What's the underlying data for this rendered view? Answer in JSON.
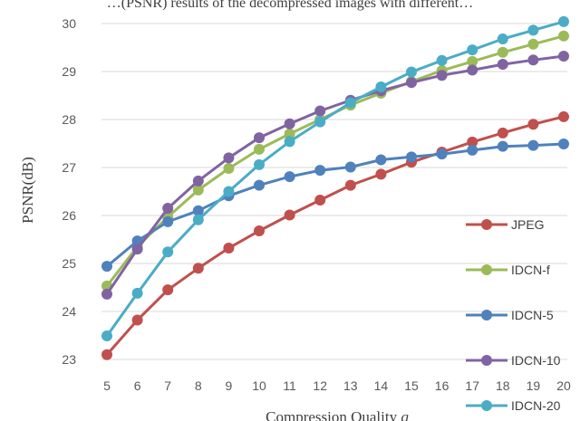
{
  "caption_top": "…(PSNR) results of the decompressed images with different…",
  "chart_data": {
    "type": "line",
    "title": "",
    "xlabel": "Compression Quality q",
    "ylabel": "PSNR(dB)",
    "x": [
      5,
      6,
      7,
      8,
      9,
      10,
      11,
      12,
      13,
      14,
      15,
      16,
      17,
      18,
      19,
      20
    ],
    "ylim": [
      23,
      30
    ],
    "yticks": [
      23,
      24,
      25,
      26,
      27,
      28,
      29,
      30
    ],
    "grid": true,
    "legend_position": "right",
    "series": [
      {
        "name": "JPEG",
        "color": "#c0504d",
        "values": [
          23.1,
          23.82,
          24.45,
          24.9,
          25.32,
          25.68,
          26.01,
          26.32,
          26.63,
          26.86,
          27.11,
          27.32,
          27.53,
          27.72,
          27.9,
          28.06
        ]
      },
      {
        "name": "IDCN-f",
        "color": "#9bbb59",
        "values": [
          24.53,
          25.35,
          25.97,
          26.53,
          26.98,
          27.38,
          27.7,
          28.0,
          28.3,
          28.55,
          28.79,
          29.02,
          29.21,
          29.4,
          29.57,
          29.74
        ]
      },
      {
        "name": "IDCN-5",
        "color": "#4f81bd",
        "values": [
          24.94,
          25.47,
          25.87,
          26.1,
          26.41,
          26.63,
          26.81,
          26.94,
          27.01,
          27.16,
          27.22,
          27.28,
          27.36,
          27.44,
          27.46,
          27.49
        ]
      },
      {
        "name": "IDCN-10",
        "color": "#8064a2",
        "values": [
          24.36,
          25.3,
          26.15,
          26.72,
          27.2,
          27.62,
          27.91,
          28.18,
          28.4,
          28.6,
          28.77,
          28.92,
          29.03,
          29.15,
          29.24,
          29.32
        ]
      },
      {
        "name": "IDCN-20",
        "color": "#4bacc6",
        "values": [
          23.49,
          24.38,
          25.24,
          25.91,
          26.5,
          27.06,
          27.54,
          27.95,
          28.35,
          28.68,
          28.99,
          29.23,
          29.45,
          29.68,
          29.86,
          30.04
        ]
      }
    ]
  }
}
